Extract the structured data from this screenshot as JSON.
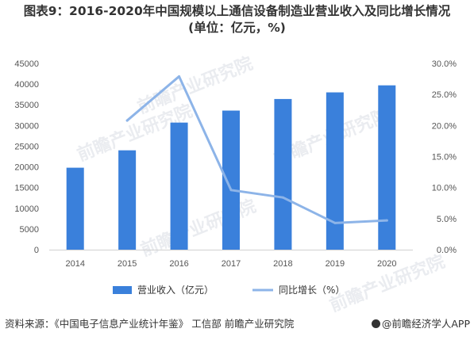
{
  "title": {
    "line1": "图表9：2016-2020年中国规模以上通信设备制造业营业收入及同比增长情况",
    "line2": "(单位：亿元，%)"
  },
  "watermark": "前瞻产业研究院",
  "footer": {
    "source": "资料来源：《中国电子信息产业统计年鉴》 工信部 前瞻产业研究院",
    "brand": "@前瞻经济学人APP"
  },
  "colors": {
    "bar": "#3a80db",
    "line": "#8db4e8",
    "axis_text": "#555555"
  },
  "chart_data": {
    "type": "bar",
    "categories": [
      "2014",
      "2015",
      "2016",
      "2017",
      "2018",
      "2019",
      "2020"
    ],
    "series": [
      {
        "name": "营业收入（亿元）",
        "type": "bar",
        "axis": "left",
        "values": [
          19800,
          24000,
          30700,
          33600,
          36400,
          38000,
          39700
        ]
      },
      {
        "name": "同比增长（%）",
        "type": "line",
        "axis": "right",
        "values": [
          null,
          20.8,
          27.9,
          9.6,
          8.4,
          4.3,
          4.7
        ]
      }
    ],
    "y_left": {
      "min": 0,
      "max": 45000,
      "step": 5000,
      "ticks": [
        "0",
        "5000",
        "10000",
        "15000",
        "20000",
        "25000",
        "30000",
        "35000",
        "40000",
        "45000"
      ]
    },
    "y_right": {
      "min": 0,
      "max": 30,
      "step": 5,
      "ticks": [
        "0.0%",
        "5.0%",
        "10.0%",
        "15.0%",
        "20.0%",
        "25.0%",
        "30.0%"
      ]
    },
    "legend": {
      "position": "bottom",
      "items": [
        {
          "label": "营业收入（亿元）",
          "kind": "bar"
        },
        {
          "label": "同比增长（%）",
          "kind": "line"
        }
      ]
    },
    "grid": false
  }
}
